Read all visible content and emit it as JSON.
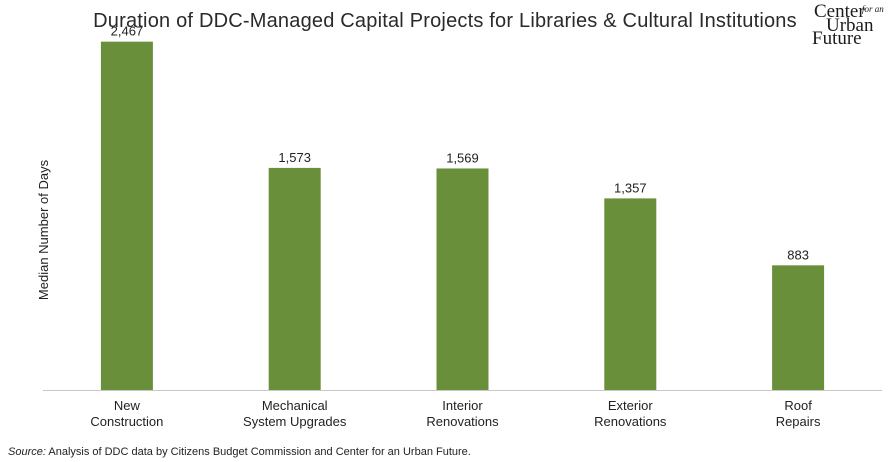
{
  "chart_data": {
    "type": "bar",
    "title": "Duration of DDC-Managed Capital Projects for Libraries & Cultural Institutions",
    "ylabel": "Median Number of Days",
    "xlabel": "",
    "categories": [
      [
        "New",
        "Construction"
      ],
      [
        "Mechanical",
        "System Upgrades"
      ],
      [
        "Interior",
        "Renovations"
      ],
      [
        "Exterior",
        "Renovations"
      ],
      [
        "Roof",
        "Repairs"
      ]
    ],
    "values": [
      2467,
      1573,
      1569,
      1357,
      883
    ],
    "data_labels": [
      "2,467",
      "1,573",
      "1,569",
      "1,357",
      "883"
    ],
    "ylim": [
      0,
      2500
    ],
    "grid": false,
    "bar_color": "#6a8f3b",
    "axis_color": "#c8c8c8"
  },
  "logo": {
    "word1": "Center",
    "word2": "for an",
    "word3": "Urban",
    "word4": "Future"
  },
  "source": {
    "label": "Source:",
    "text": " Analysis of DDC data by Citizens Budget Commission and Center for an Urban Future."
  }
}
